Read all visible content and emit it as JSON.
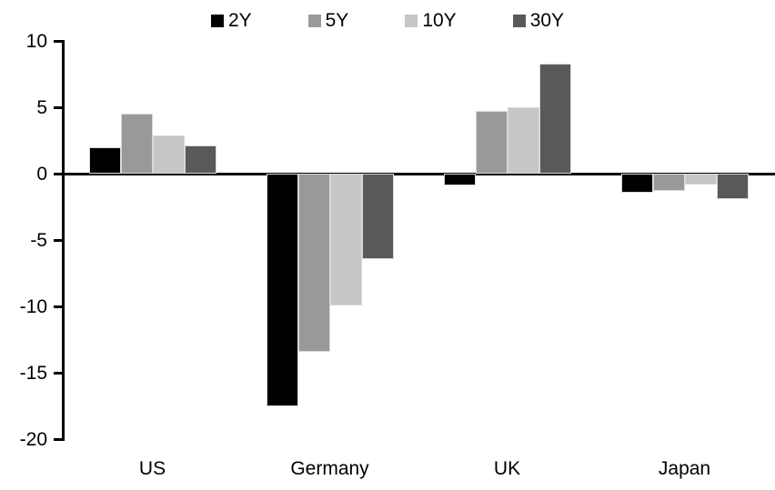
{
  "chart_data": {
    "type": "bar",
    "title": "",
    "xlabel": "",
    "ylabel": "",
    "categories": [
      "US",
      "Germany",
      "UK",
      "Japan"
    ],
    "series": [
      {
        "name": "2Y",
        "color": "#000000",
        "values": [
          2.0,
          -17.5,
          -0.9,
          -1.4
        ]
      },
      {
        "name": "5Y",
        "color": "#999999",
        "values": [
          4.5,
          -13.4,
          4.7,
          -1.3
        ]
      },
      {
        "name": "10Y",
        "color": "#c6c6c6",
        "values": [
          2.9,
          -9.9,
          5.0,
          -0.8
        ]
      },
      {
        "name": "30Y",
        "color": "#595959",
        "values": [
          2.1,
          -6.4,
          8.3,
          -1.9
        ]
      }
    ],
    "ylim": [
      -20,
      10
    ],
    "yticks": [
      10,
      5,
      0,
      -5,
      -10,
      -15,
      -20
    ],
    "legend_position": "top-center",
    "grid": false,
    "axis_color": "#000000",
    "background_color": "#ffffff",
    "bar_border_color": "#d9d9d9"
  }
}
